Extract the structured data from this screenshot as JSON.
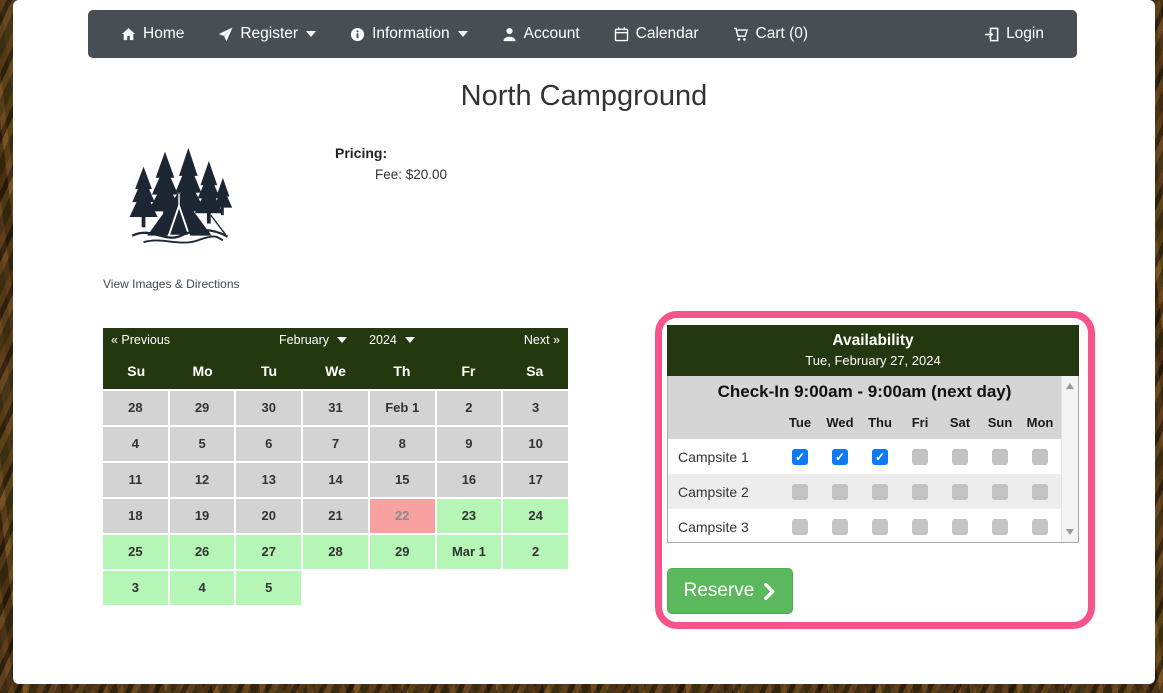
{
  "navbar": {
    "items": [
      {
        "label": "Home",
        "icon": "home-icon"
      },
      {
        "label": "Register",
        "icon": "paper-plane-icon",
        "caret": true
      },
      {
        "label": "Information",
        "icon": "info-circle-icon",
        "caret": true
      },
      {
        "label": "Account",
        "icon": "user-icon"
      },
      {
        "label": "Calendar",
        "icon": "calendar-icon"
      },
      {
        "label": "Cart (0)",
        "icon": "cart-icon"
      }
    ],
    "login": {
      "label": "Login",
      "icon": "sign-in-icon"
    }
  },
  "page": {
    "title": "North Campground",
    "view_images_link": "View Images & Directions"
  },
  "pricing": {
    "label": "Pricing:",
    "fee": "Fee: $20.00"
  },
  "calendar": {
    "prev_label": "« Previous",
    "next_label": "Next »",
    "month": "February",
    "year": "2024",
    "day_headers": [
      "Su",
      "Mo",
      "Tu",
      "We",
      "Th",
      "Fr",
      "Sa"
    ],
    "weeks": [
      [
        {
          "label": "28",
          "state": "unavailable"
        },
        {
          "label": "29",
          "state": "unavailable"
        },
        {
          "label": "30",
          "state": "unavailable"
        },
        {
          "label": "31",
          "state": "unavailable"
        },
        {
          "label": "Feb 1",
          "state": "unavailable"
        },
        {
          "label": "2",
          "state": "unavailable"
        },
        {
          "label": "3",
          "state": "unavailable"
        }
      ],
      [
        {
          "label": "4",
          "state": "unavailable"
        },
        {
          "label": "5",
          "state": "unavailable"
        },
        {
          "label": "6",
          "state": "unavailable"
        },
        {
          "label": "7",
          "state": "unavailable"
        },
        {
          "label": "8",
          "state": "unavailable"
        },
        {
          "label": "9",
          "state": "unavailable"
        },
        {
          "label": "10",
          "state": "unavailable"
        }
      ],
      [
        {
          "label": "11",
          "state": "unavailable"
        },
        {
          "label": "12",
          "state": "unavailable"
        },
        {
          "label": "13",
          "state": "unavailable"
        },
        {
          "label": "14",
          "state": "unavailable"
        },
        {
          "label": "15",
          "state": "unavailable"
        },
        {
          "label": "16",
          "state": "unavailable"
        },
        {
          "label": "17",
          "state": "unavailable"
        }
      ],
      [
        {
          "label": "18",
          "state": "unavailable"
        },
        {
          "label": "19",
          "state": "unavailable"
        },
        {
          "label": "20",
          "state": "unavailable"
        },
        {
          "label": "21",
          "state": "unavailable"
        },
        {
          "label": "22",
          "state": "full"
        },
        {
          "label": "23",
          "state": "available"
        },
        {
          "label": "24",
          "state": "available"
        }
      ],
      [
        {
          "label": "25",
          "state": "available"
        },
        {
          "label": "26",
          "state": "available"
        },
        {
          "label": "27",
          "state": "available"
        },
        {
          "label": "28",
          "state": "available"
        },
        {
          "label": "29",
          "state": "available"
        },
        {
          "label": "Mar 1",
          "state": "available"
        },
        {
          "label": "2",
          "state": "available"
        }
      ],
      [
        {
          "label": "3",
          "state": "available"
        },
        {
          "label": "4",
          "state": "available"
        },
        {
          "label": "5",
          "state": "available"
        },
        {
          "label": "",
          "state": "empty"
        },
        {
          "label": "",
          "state": "empty"
        },
        {
          "label": "",
          "state": "empty"
        },
        {
          "label": "",
          "state": "empty"
        }
      ]
    ]
  },
  "availability": {
    "title": "Availability",
    "date": "Tue, February 27, 2024",
    "checkin_header": "Check-In 9:00am - 9:00am (next day)",
    "day_columns": [
      "Tue",
      "Wed",
      "Thu",
      "Fri",
      "Sat",
      "Sun",
      "Mon"
    ],
    "rows": [
      {
        "label": "Campsite 1",
        "checks": [
          "checked",
          "checked",
          "checked",
          "disabled",
          "disabled",
          "disabled",
          "disabled"
        ]
      },
      {
        "label": "Campsite 2",
        "checks": [
          "disabled",
          "disabled",
          "disabled",
          "disabled",
          "disabled",
          "disabled",
          "disabled"
        ]
      },
      {
        "label": "Campsite 3",
        "checks": [
          "disabled",
          "disabled",
          "disabled",
          "disabled",
          "disabled",
          "disabled",
          "disabled"
        ]
      }
    ],
    "reserve_label": "Reserve"
  },
  "colors": {
    "navbar_gray": "#474f55",
    "header_green": "#24380f",
    "highlight_pink": "#f8538a",
    "checkbox_blue": "#0d79f3",
    "accent_green": "#5cb85c",
    "cell_gray": "#d3d3d3",
    "cell_green": "#b5f5b5",
    "cell_pink": "#f9a1a1"
  }
}
